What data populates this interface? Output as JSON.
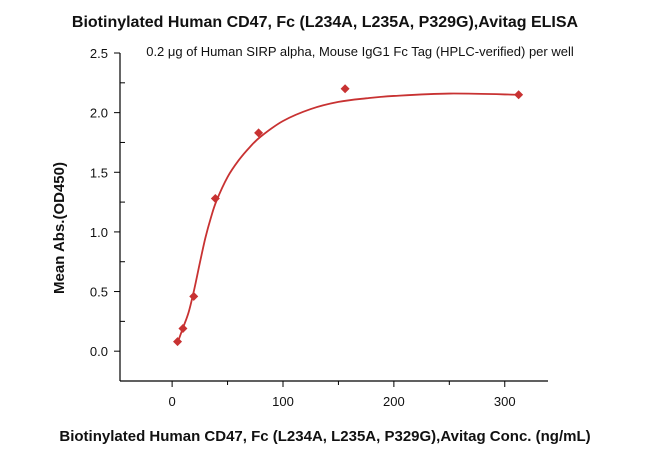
{
  "chart_data": {
    "type": "scatter",
    "title": "Biotinylated Human CD47, Fc (L234A, L235A, P329G),Avitag ELISA",
    "subtitle": "0.2 μg of Human SIRP alpha, Mouse IgG1 Fc Tag (HPLC-verified) per well",
    "xlabel": "Biotinylated Human CD47, Fc (L234A, L235A, P329G),Avitag Conc. (ng/mL)",
    "ylabel": "Mean Abs.(OD450)",
    "xlim": [
      -47,
      339
    ],
    "ylim": [
      -0.25,
      2.5
    ],
    "xticks": [
      "0",
      "100",
      "200",
      "300"
    ],
    "yticks": [
      "0.0",
      "0.5",
      "1.0",
      "1.5",
      "2.0",
      "2.5"
    ],
    "grid": false,
    "color": "#c83232",
    "points": [
      {
        "x": 4.88,
        "y": 0.08
      },
      {
        "x": 9.77,
        "y": 0.19
      },
      {
        "x": 19.5,
        "y": 0.46
      },
      {
        "x": 39,
        "y": 1.28
      },
      {
        "x": 78,
        "y": 1.83
      },
      {
        "x": 156,
        "y": 2.2
      },
      {
        "x": 312.5,
        "y": 2.15
      }
    ],
    "fit_curve": [
      {
        "x": 4.5,
        "y": 0.06
      },
      {
        "x": 10,
        "y": 0.2
      },
      {
        "x": 15,
        "y": 0.33
      },
      {
        "x": 20,
        "y": 0.52
      },
      {
        "x": 25,
        "y": 0.74
      },
      {
        "x": 30,
        "y": 0.95
      },
      {
        "x": 35,
        "y": 1.12
      },
      {
        "x": 40,
        "y": 1.26
      },
      {
        "x": 50,
        "y": 1.46
      },
      {
        "x": 60,
        "y": 1.6
      },
      {
        "x": 70,
        "y": 1.71
      },
      {
        "x": 80,
        "y": 1.8
      },
      {
        "x": 100,
        "y": 1.93
      },
      {
        "x": 125,
        "y": 2.03
      },
      {
        "x": 150,
        "y": 2.09
      },
      {
        "x": 175,
        "y": 2.12
      },
      {
        "x": 200,
        "y": 2.14
      },
      {
        "x": 250,
        "y": 2.16
      },
      {
        "x": 312.5,
        "y": 2.15
      }
    ]
  }
}
